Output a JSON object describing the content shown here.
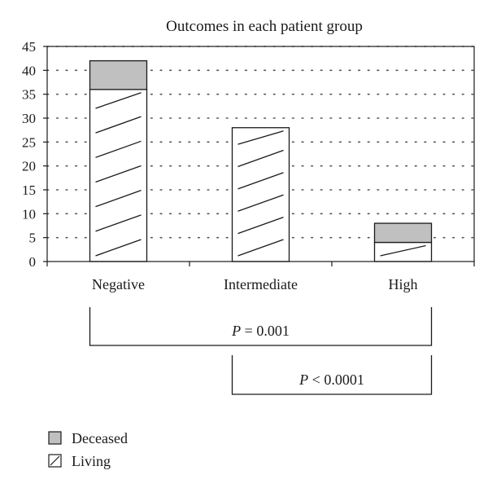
{
  "chart_data": {
    "type": "bar",
    "stacked": true,
    "title": "Outcomes in each patient group",
    "xlabel": "",
    "ylabel": "",
    "categories": [
      "Negative",
      "Intermediate",
      "High"
    ],
    "series": [
      {
        "name": "Living",
        "values": [
          36,
          28,
          4
        ],
        "fill": "hatch"
      },
      {
        "name": "Deceased",
        "values": [
          6,
          0,
          4
        ],
        "fill": "#c0c0c0"
      }
    ],
    "ylim": [
      0,
      45
    ],
    "yticks": [
      0,
      5,
      10,
      15,
      20,
      25,
      30,
      35,
      40,
      45
    ],
    "grid": "dotted-horizontal",
    "legend_position": "bottom-left",
    "annotations": [
      {
        "label_italic": "P",
        "label_rest": " = 0.001",
        "from": "Negative",
        "to": "High"
      },
      {
        "label_italic": "P",
        "label_rest": " < 0.0001",
        "from": "Intermediate",
        "to": "High"
      }
    ]
  },
  "colors": {
    "deceased": "#c0c0c0",
    "living": "#ffffff",
    "axis": "#1a1a1a",
    "grid": "#555555"
  }
}
